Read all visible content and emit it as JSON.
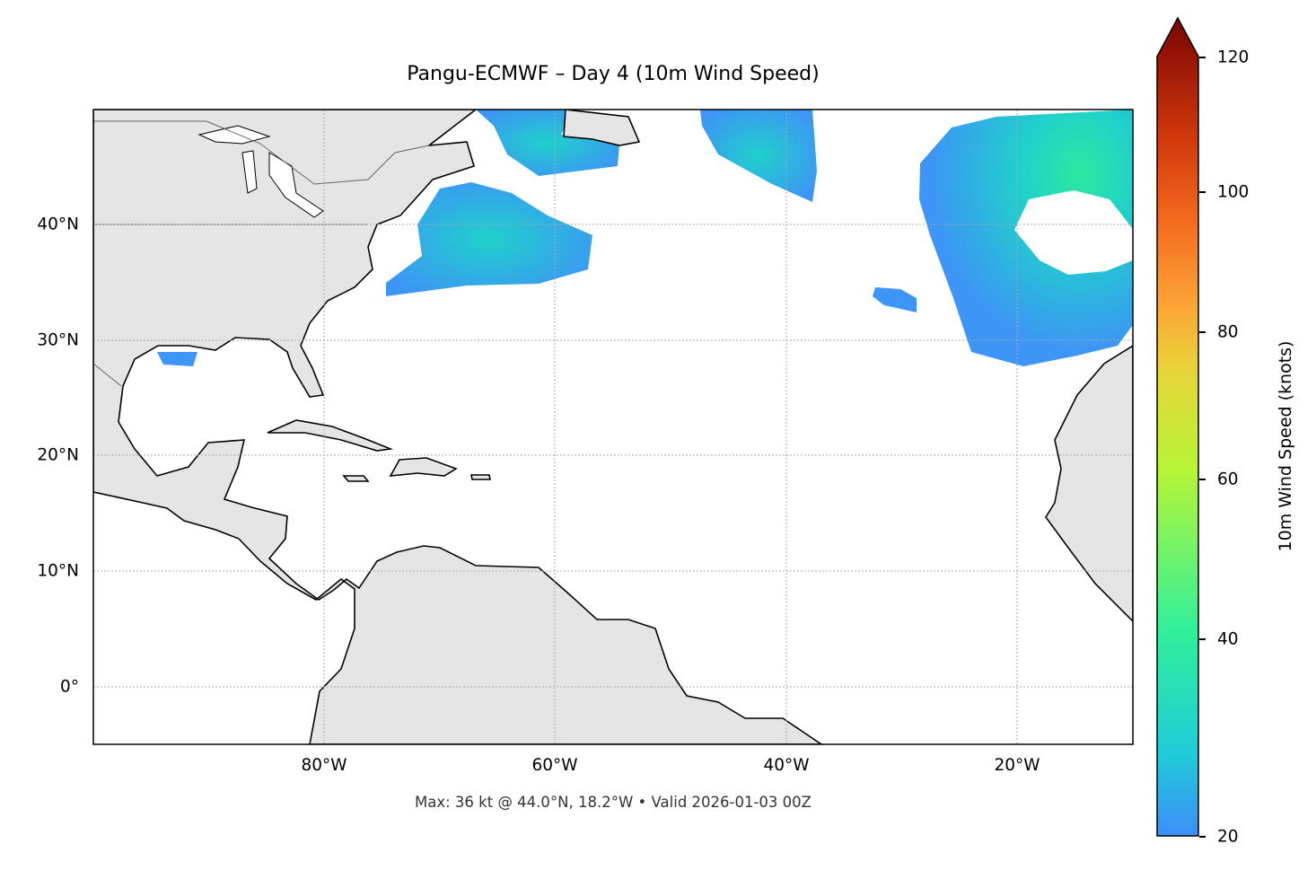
{
  "title": "Pangu-ECMWF – Day 4 (10m Wind Speed)",
  "footer": "Max: 36 kt @ 44.0°N, 18.2°W • Valid 2026-01-03 00Z",
  "map": {
    "projection": "PlateCarree",
    "lon_range": [
      -100,
      -10
    ],
    "lat_range": [
      -5,
      50
    ],
    "gridlines": "dotted",
    "x_ticks": [
      "80°W",
      "60°W",
      "40°W",
      "20°W"
    ],
    "y_ticks": [
      "40°N",
      "30°N",
      "20°N",
      "10°N",
      "0°"
    ],
    "land_color": "#e5e5e5",
    "coastline_color": "#000000",
    "border_color": "#666666"
  },
  "colorbar": {
    "label": "10m Wind Speed (knots)",
    "ticks": [
      "120",
      "100",
      "80",
      "60",
      "40",
      "20"
    ],
    "range": [
      20,
      120
    ],
    "extend": "max",
    "colormap": "turbo (from 20 kt)"
  },
  "max_point": {
    "value_kt": 36,
    "lat": 44.0,
    "lon": -18.2
  }
}
